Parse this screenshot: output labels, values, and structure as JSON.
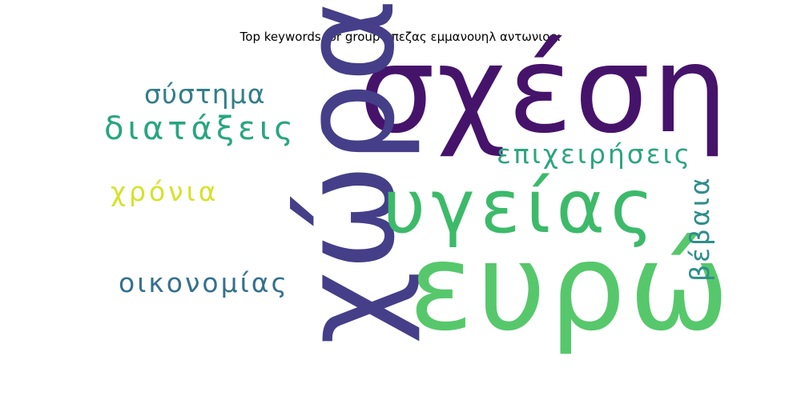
{
  "title": "Top keywords for group μπεζας εμμανουηλ αντωνιος:",
  "words": [
    {
      "text": "σχέση",
      "color": "#46136b"
    },
    {
      "text": "χώρα",
      "color": "#443f88"
    },
    {
      "text": "υγείας",
      "color": "#3cba6a"
    },
    {
      "text": "ευρώ",
      "color": "#56c86b"
    },
    {
      "text": "σύστημα",
      "color": "#337e8a"
    },
    {
      "text": "διατάξεις",
      "color": "#27a67f"
    },
    {
      "text": "επιχειρήσεις",
      "color": "#2da67e"
    },
    {
      "text": "χρόνια",
      "color": "#d6e22b"
    },
    {
      "text": "οικονομίας",
      "color": "#34718d"
    },
    {
      "text": "βέβαια",
      "color": "#2e8e8a"
    }
  ]
}
